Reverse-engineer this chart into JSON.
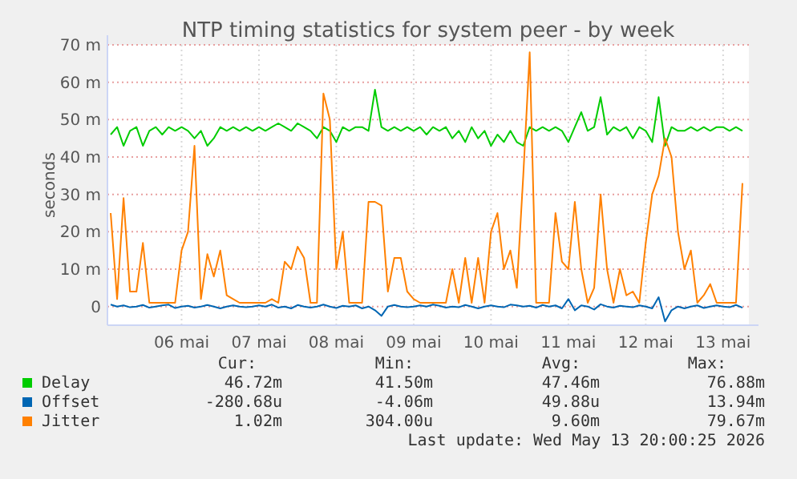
{
  "chart_data": {
    "type": "line",
    "title": "NTP timing statistics for system peer - by week",
    "ylabel": "seconds",
    "x": [
      "2026-05-05T14:00",
      "2026-05-05T16:00",
      "2026-05-05T18:00",
      "2026-05-05T20:00",
      "2026-05-05T22:00",
      "2026-05-06T00:00",
      "2026-05-06T02:00",
      "2026-05-06T04:00",
      "2026-05-06T06:00",
      "2026-05-06T08:00",
      "2026-05-06T10:00",
      "2026-05-06T12:00",
      "2026-05-06T14:00",
      "2026-05-06T16:00",
      "2026-05-06T18:00",
      "2026-05-06T20:00",
      "2026-05-06T22:00",
      "2026-05-07T00:00",
      "2026-05-07T02:00",
      "2026-05-07T04:00",
      "2026-05-07T06:00",
      "2026-05-07T08:00",
      "2026-05-07T10:00",
      "2026-05-07T12:00",
      "2026-05-07T14:00",
      "2026-05-07T16:00",
      "2026-05-07T18:00",
      "2026-05-07T20:00",
      "2026-05-07T22:00",
      "2026-05-08T00:00",
      "2026-05-08T02:00",
      "2026-05-08T04:00",
      "2026-05-08T06:00",
      "2026-05-08T08:00",
      "2026-05-08T10:00",
      "2026-05-08T12:00",
      "2026-05-08T14:00",
      "2026-05-08T16:00",
      "2026-05-08T18:00",
      "2026-05-08T20:00",
      "2026-05-08T22:00",
      "2026-05-09T00:00",
      "2026-05-09T02:00",
      "2026-05-09T04:00",
      "2026-05-09T06:00",
      "2026-05-09T08:00",
      "2026-05-09T10:00",
      "2026-05-09T12:00",
      "2026-05-09T14:00",
      "2026-05-09T16:00",
      "2026-05-09T18:00",
      "2026-05-09T20:00",
      "2026-05-09T22:00",
      "2026-05-10T00:00",
      "2026-05-10T02:00",
      "2026-05-10T04:00",
      "2026-05-10T06:00",
      "2026-05-10T08:00",
      "2026-05-10T10:00",
      "2026-05-10T12:00",
      "2026-05-10T14:00",
      "2026-05-10T16:00",
      "2026-05-10T18:00",
      "2026-05-10T20:00",
      "2026-05-10T22:00",
      "2026-05-11T00:00",
      "2026-05-11T02:00",
      "2026-05-11T04:00",
      "2026-05-11T06:00",
      "2026-05-11T08:00",
      "2026-05-11T10:00",
      "2026-05-11T12:00",
      "2026-05-11T14:00",
      "2026-05-11T16:00",
      "2026-05-11T18:00",
      "2026-05-11T20:00",
      "2026-05-11T22:00",
      "2026-05-12T00:00",
      "2026-05-12T02:00",
      "2026-05-12T04:00",
      "2026-05-12T06:00",
      "2026-05-12T08:00",
      "2026-05-12T10:00",
      "2026-05-12T12:00",
      "2026-05-12T14:00",
      "2026-05-12T16:00",
      "2026-05-12T18:00",
      "2026-05-12T20:00",
      "2026-05-12T22:00",
      "2026-05-13T00:00",
      "2026-05-13T02:00",
      "2026-05-13T04:00",
      "2026-05-13T06:00",
      "2026-05-13T08:00",
      "2026-05-13T10:00",
      "2026-05-13T12:00",
      "2026-05-13T14:00",
      "2026-05-13T16:00",
      "2026-05-13T18:00"
    ],
    "xlim": [
      "2026-05-05T13:00",
      "2026-05-13T20:00"
    ],
    "xticks": [
      {
        "value": "2026-05-06T12:00",
        "label": "06 mai"
      },
      {
        "value": "2026-05-07T12:00",
        "label": "07 mai"
      },
      {
        "value": "2026-05-08T12:00",
        "label": "08 mai"
      },
      {
        "value": "2026-05-09T12:00",
        "label": "09 mai"
      },
      {
        "value": "2026-05-10T12:00",
        "label": "10 mai"
      },
      {
        "value": "2026-05-11T12:00",
        "label": "11 mai"
      },
      {
        "value": "2026-05-12T12:00",
        "label": "12 mai"
      },
      {
        "value": "2026-05-13T12:00",
        "label": "13 mai"
      }
    ],
    "ylim": [
      -5,
      70
    ],
    "yticks": [
      {
        "value": 0,
        "label": "0"
      },
      {
        "value": 10,
        "label": "10 m"
      },
      {
        "value": 20,
        "label": "20 m"
      },
      {
        "value": 30,
        "label": "30 m"
      },
      {
        "value": 40,
        "label": "40 m"
      },
      {
        "value": 50,
        "label": "50 m"
      },
      {
        "value": 60,
        "label": "60 m"
      },
      {
        "value": 70,
        "label": "70 m"
      }
    ],
    "grid": true,
    "legend": "bottom left",
    "marker": "none",
    "line_style": "solid",
    "series": [
      {
        "name": "Delay",
        "color": "#00cc00",
        "values": [
          46,
          48,
          43,
          47,
          48,
          43,
          47,
          48,
          46,
          48,
          47,
          48,
          47,
          45,
          47,
          43,
          45,
          48,
          47,
          48,
          47,
          48,
          47,
          48,
          47,
          48,
          49,
          48,
          47,
          49,
          48,
          47,
          45,
          48,
          47,
          44,
          48,
          47,
          48,
          48,
          47,
          58,
          48,
          47,
          48,
          47,
          48,
          47,
          48,
          46,
          48,
          47,
          48,
          45,
          47,
          44,
          48,
          45,
          47,
          43,
          46,
          44,
          47,
          44,
          43,
          48,
          47,
          48,
          47,
          48,
          47,
          44,
          48,
          52,
          47,
          48,
          56,
          46,
          48,
          47,
          48,
          45,
          48,
          47,
          44,
          56,
          43,
          48,
          47,
          47,
          48,
          47,
          48,
          47,
          48,
          48,
          47,
          48,
          47
        ]
      },
      {
        "name": "Offset",
        "color": "#0066b3",
        "values": [
          0.5,
          0,
          0.3,
          -0.2,
          0,
          0.4,
          -0.3,
          0,
          0.3,
          0.5,
          -0.4,
          0,
          0.2,
          -0.3,
          0,
          0.4,
          0,
          -0.5,
          0,
          0.3,
          0,
          -0.2,
          0,
          0.3,
          0,
          0.5,
          -0.3,
          0,
          -0.5,
          0.4,
          0,
          -0.3,
          0,
          0.5,
          0,
          -0.4,
          0.2,
          0,
          0.3,
          -0.5,
          0,
          -1,
          -2.5,
          0,
          0.4,
          0,
          -0.2,
          0,
          0.3,
          0,
          0.5,
          0.2,
          -0.3,
          0,
          -0.2,
          0.4,
          0,
          -0.5,
          0,
          0.3,
          0,
          -0.2,
          0.5,
          0.3,
          0,
          0.2,
          -0.3,
          0.4,
          0,
          0.3,
          -0.5,
          2,
          -1,
          0.3,
          0,
          -0.8,
          0.6,
          0,
          -0.3,
          0.2,
          0,
          -0.2,
          0.3,
          0,
          -0.5,
          2.5,
          -4,
          -1,
          0,
          -0.5,
          0,
          0.3,
          -0.4,
          0,
          0.3,
          0,
          -0.2,
          0.4,
          -0.3
        ]
      },
      {
        "name": "Jitter",
        "color": "#ff8000",
        "values": [
          25,
          2,
          29,
          4,
          4,
          17,
          1,
          1,
          1,
          1,
          1,
          15,
          20,
          43,
          2,
          14,
          8,
          15,
          3,
          2,
          1,
          1,
          1,
          1,
          1,
          2,
          1,
          12,
          10,
          16,
          13,
          1,
          1,
          57,
          50,
          10,
          20,
          1,
          1,
          1,
          28,
          28,
          27,
          4,
          13,
          13,
          4,
          2,
          1,
          1,
          1,
          1,
          1,
          10,
          1,
          13,
          1,
          13,
          1,
          20,
          25,
          10,
          15,
          5,
          35,
          68,
          1,
          1,
          1,
          25,
          12,
          10,
          28,
          10,
          1,
          5,
          30,
          10,
          1,
          10,
          3,
          4,
          1,
          17,
          30,
          35,
          45,
          40,
          20,
          10,
          15,
          1,
          3,
          6,
          1,
          1,
          1,
          1,
          33
        ]
      }
    ],
    "annotations": [
      "Cur:",
      "Min:",
      "Avg:",
      "Max:",
      "46.72m",
      "41.50m",
      "47.46m",
      "76.88m",
      "-280.68u",
      "-4.06m",
      "49.88u",
      "13.94m",
      "1.02m",
      "304.00u",
      "9.60m",
      "79.67m",
      "Last update: Wed May 13 20:00:25 2026"
    ]
  }
}
